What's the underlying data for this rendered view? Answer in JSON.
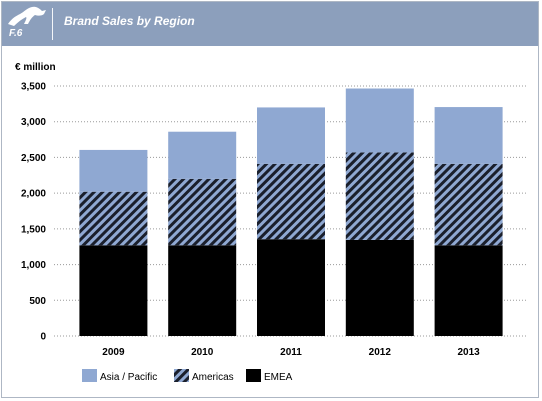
{
  "header": {
    "figure_label": "F.6",
    "title": "Brand Sales by Region"
  },
  "colors": {
    "header_bg": "#8c9fbc",
    "asia_pacific": "#8fa8d2",
    "americas_bg": "#8fa8d2",
    "americas_hatch": "#1a1f2c",
    "emea": "#000000",
    "grid": "#9a9a9a"
  },
  "chart_data": {
    "type": "bar",
    "stacked": true,
    "ylabel": "€ million",
    "categories": [
      "2009",
      "2010",
      "2011",
      "2012",
      "2013"
    ],
    "series": [
      {
        "name": "EMEA",
        "values": [
          1270,
          1270,
          1355,
          1345,
          1270
        ]
      },
      {
        "name": "Americas",
        "values": [
          750,
          930,
          1055,
          1225,
          1140
        ]
      },
      {
        "name": "Asia / Pacific",
        "values": [
          585,
          660,
          790,
          895,
          795
        ]
      }
    ],
    "yticks": [
      "0",
      "500",
      "1,000",
      "1,500",
      "2,000",
      "2,500",
      "3,000",
      "3,500"
    ],
    "ylim": [
      0,
      3500
    ],
    "grid": true,
    "legend_position": "bottom"
  }
}
